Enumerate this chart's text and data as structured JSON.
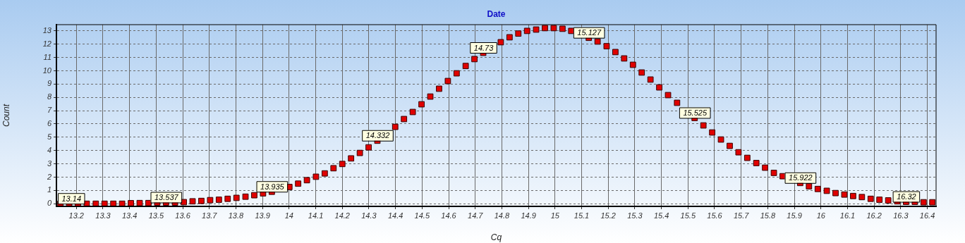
{
  "chart_data": {
    "type": "scatter",
    "title": "Date",
    "xlabel": "Cq",
    "ylabel": "Count",
    "x": [
      13.14,
      13.173,
      13.206,
      13.239,
      13.273,
      13.306,
      13.339,
      13.372,
      13.405,
      13.438,
      13.471,
      13.504,
      13.537,
      13.571,
      13.604,
      13.637,
      13.67,
      13.703,
      13.736,
      13.769,
      13.802,
      13.836,
      13.869,
      13.902,
      13.935,
      13.968,
      14.001,
      14.034,
      14.067,
      14.101,
      14.134,
      14.167,
      14.2,
      14.233,
      14.266,
      14.299,
      14.332,
      14.365,
      14.399,
      14.432,
      14.465,
      14.498,
      14.531,
      14.564,
      14.597,
      14.63,
      14.664,
      14.697,
      14.73,
      14.763,
      14.796,
      14.829,
      14.862,
      14.895,
      14.929,
      14.962,
      14.995,
      15.028,
      15.061,
      15.094,
      15.127,
      15.16,
      15.194,
      15.227,
      15.26,
      15.293,
      15.326,
      15.359,
      15.392,
      15.425,
      15.459,
      15.492,
      15.525,
      15.558,
      15.591,
      15.624,
      15.657,
      15.69,
      15.723,
      15.757,
      15.79,
      15.823,
      15.856,
      15.889,
      15.922,
      15.955,
      15.988,
      16.022,
      16.055,
      16.088,
      16.121,
      16.154,
      16.187,
      16.22,
      16.253,
      16.287,
      16.32,
      16.353,
      16.386,
      16.419
    ],
    "series": [
      {
        "color": "#e00000",
        "values": [
          0,
          0,
          0,
          0,
          0,
          0,
          0,
          0,
          0.04,
          0.05,
          0.05,
          0.09,
          0.09,
          0.09,
          0.12,
          0.18,
          0.21,
          0.27,
          0.3,
          0.37,
          0.44,
          0.53,
          0.64,
          0.78,
          0.9,
          null,
          1.26,
          1.51,
          1.77,
          2.03,
          2.28,
          2.67,
          2.99,
          3.41,
          3.82,
          4.24,
          4.74,
          null,
          5.78,
          6.37,
          6.9,
          7.48,
          8.06,
          8.65,
          9.23,
          9.81,
          10.36,
          10.88,
          11.35,
          null,
          12.15,
          12.52,
          12.8,
          13.0,
          13.1,
          13.21,
          13.21,
          13.16,
          13.0,
          null,
          12.48,
          12.2,
          11.85,
          11.41,
          10.93,
          10.45,
          9.87,
          9.34,
          8.75,
          8.17,
          7.59,
          null,
          6.45,
          5.89,
          5.36,
          4.83,
          4.35,
          3.87,
          3.45,
          3.06,
          2.71,
          2.32,
          2.07,
          null,
          1.56,
          1.31,
          1.11,
          0.97,
          0.8,
          0.69,
          0.58,
          0.5,
          0.37,
          0.3,
          0.25,
          0.18,
          0.14,
          0.14,
          0.11,
          0.11
        ]
      }
    ],
    "xlim": [
      13.125,
      16.433
    ],
    "ylim": [
      -0.2,
      13.47
    ],
    "xticks": [
      13.2,
      13.3,
      13.4,
      13.5,
      13.6,
      13.7,
      13.8,
      13.9,
      14,
      14.1,
      14.2,
      14.3,
      14.4,
      14.5,
      14.6,
      14.7,
      14.8,
      14.9,
      15,
      15.1,
      15.2,
      15.3,
      15.4,
      15.5,
      15.6,
      15.7,
      15.8,
      15.9,
      16,
      16.1,
      16.2,
      16.3,
      16.4
    ],
    "yticks": [
      0,
      1,
      2,
      3,
      4,
      5,
      6,
      7,
      8,
      9,
      10,
      11,
      12,
      13
    ],
    "annotations": [
      {
        "text": "13.14",
        "x": 13.14,
        "y": 0
      },
      {
        "text": "13.537",
        "x": 13.537,
        "y": 0.09
      },
      {
        "text": "13.935",
        "x": 13.935,
        "y": 0.9
      },
      {
        "text": "14.332",
        "x": 14.332,
        "y": 4.74
      },
      {
        "text": "14.73",
        "x": 14.73,
        "y": 11.35
      },
      {
        "text": "15.127",
        "x": 15.127,
        "y": 12.48
      },
      {
        "text": "15.525",
        "x": 15.525,
        "y": 6.45
      },
      {
        "text": "15.922",
        "x": 15.922,
        "y": 1.56
      },
      {
        "text": "16.32",
        "x": 16.32,
        "y": 0.14
      }
    ],
    "grid": true,
    "legend": false,
    "marker": "square"
  }
}
